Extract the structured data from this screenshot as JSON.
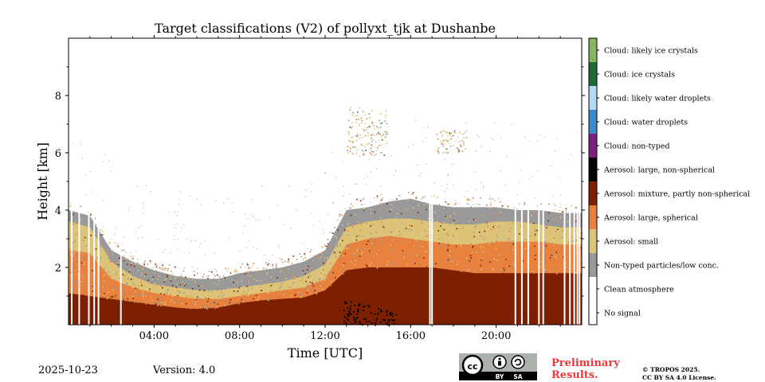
{
  "chart_data": {
    "type": "heatmap",
    "title": "Target classifications (V2) of pollyxt_tjk at Dushanbe",
    "xlabel": "Time [UTC]",
    "ylabel": "Height [km]",
    "xlim_hours": [
      0,
      24
    ],
    "ylim_km": [
      0,
      10
    ],
    "x_ticks": [
      {
        "hour": 4,
        "label": "04:00"
      },
      {
        "hour": 8,
        "label": "08:00"
      },
      {
        "hour": 12,
        "label": "12:00"
      },
      {
        "hour": 16,
        "label": "16:00"
      },
      {
        "hour": 20,
        "label": "20:00"
      }
    ],
    "y_ticks": [
      {
        "km": 2,
        "label": "2"
      },
      {
        "km": 4,
        "label": "4"
      },
      {
        "km": 6,
        "label": "6"
      },
      {
        "km": 8,
        "label": "8"
      }
    ],
    "classes": [
      {
        "id": 11,
        "label": "Cloud: likely ice crystals",
        "color": "#8ab560"
      },
      {
        "id": 10,
        "label": "Cloud: ice crystals",
        "color": "#1d6b35"
      },
      {
        "id": 9,
        "label": "Cloud: likely water droplets",
        "color": "#b4d8f2"
      },
      {
        "id": 8,
        "label": "Cloud: water droplets",
        "color": "#3d8ac9"
      },
      {
        "id": 7,
        "label": "Cloud: non-typed",
        "color": "#7b1f83"
      },
      {
        "id": 6,
        "label": "Aerosol: large, non-spherical",
        "color": "#000000"
      },
      {
        "id": 5,
        "label": "Aerosol: mixture, partly non-spherical",
        "color": "#7d2002"
      },
      {
        "id": 4,
        "label": "Aerosol: large, spherical",
        "color": "#e8803e"
      },
      {
        "id": 3,
        "label": "Aerosol: small",
        "color": "#dcc378"
      },
      {
        "id": 2,
        "label": "Non-typed particles/low conc.",
        "color": "#999999"
      },
      {
        "id": 1,
        "label": "Clean atmosphere",
        "color": "#ffffff"
      },
      {
        "id": 0,
        "label": "No signal",
        "color": "#ffffff"
      }
    ],
    "layer_top_km": [
      {
        "hour": 0,
        "mixture": 1.1,
        "spherical": 2.6,
        "small": 3.6,
        "nontyped": 4.0
      },
      {
        "hour": 1,
        "mixture": 1.0,
        "spherical": 2.5,
        "small": 3.4,
        "nontyped": 3.8
      },
      {
        "hour": 2,
        "mixture": 0.9,
        "spherical": 1.6,
        "small": 2.2,
        "nontyped": 2.6
      },
      {
        "hour": 3,
        "mixture": 0.8,
        "spherical": 1.3,
        "small": 1.7,
        "nontyped": 2.2
      },
      {
        "hour": 4,
        "mixture": 0.7,
        "spherical": 1.1,
        "small": 1.4,
        "nontyped": 1.9
      },
      {
        "hour": 5,
        "mixture": 0.6,
        "spherical": 1.0,
        "small": 1.3,
        "nontyped": 1.7
      },
      {
        "hour": 6,
        "mixture": 0.55,
        "spherical": 0.9,
        "small": 1.2,
        "nontyped": 1.6
      },
      {
        "hour": 7,
        "mixture": 0.6,
        "spherical": 0.9,
        "small": 1.2,
        "nontyped": 1.6
      },
      {
        "hour": 8,
        "mixture": 0.75,
        "spherical": 1.0,
        "small": 1.3,
        "nontyped": 1.8
      },
      {
        "hour": 9,
        "mixture": 0.85,
        "spherical": 1.1,
        "small": 1.4,
        "nontyped": 1.9
      },
      {
        "hour": 10,
        "mixture": 0.9,
        "spherical": 1.2,
        "small": 1.5,
        "nontyped": 2.0
      },
      {
        "hour": 11,
        "mixture": 0.95,
        "spherical": 1.3,
        "small": 1.7,
        "nontyped": 2.2
      },
      {
        "hour": 12,
        "mixture": 1.2,
        "spherical": 1.6,
        "small": 2.1,
        "nontyped": 2.6
      },
      {
        "hour": 13,
        "mixture": 1.9,
        "spherical": 2.8,
        "small": 3.4,
        "nontyped": 4.0
      },
      {
        "hour": 14,
        "mixture": 2.0,
        "spherical": 3.0,
        "small": 3.6,
        "nontyped": 4.1
      },
      {
        "hour": 15,
        "mixture": 2.0,
        "spherical": 3.1,
        "small": 3.7,
        "nontyped": 4.3
      },
      {
        "hour": 16,
        "mixture": 2.0,
        "spherical": 3.0,
        "small": 3.7,
        "nontyped": 4.4
      },
      {
        "hour": 17,
        "mixture": 2.0,
        "spherical": 2.9,
        "small": 3.6,
        "nontyped": 4.2
      },
      {
        "hour": 18,
        "mixture": 1.9,
        "spherical": 2.8,
        "small": 3.5,
        "nontyped": 4.1
      },
      {
        "hour": 19,
        "mixture": 1.8,
        "spherical": 2.8,
        "small": 3.5,
        "nontyped": 4.1
      },
      {
        "hour": 20,
        "mixture": 1.8,
        "spherical": 2.9,
        "small": 3.6,
        "nontyped": 4.1
      },
      {
        "hour": 21,
        "mixture": 1.8,
        "spherical": 2.9,
        "small": 3.6,
        "nontyped": 4.0
      },
      {
        "hour": 22,
        "mixture": 1.8,
        "spherical": 2.9,
        "small": 3.5,
        "nontyped": 4.0
      },
      {
        "hour": 23,
        "mixture": 1.8,
        "spherical": 2.8,
        "small": 3.4,
        "nontyped": 3.9
      },
      {
        "hour": 24,
        "mixture": 1.8,
        "spherical": 2.8,
        "small": 3.4,
        "nontyped": 3.9
      }
    ],
    "no_signal_gaps_hours": [
      0.15,
      0.5,
      0.95,
      1.2,
      1.4,
      2.45,
      16.9,
      17.0,
      20.9,
      21.2,
      21.5,
      22.0,
      22.2,
      23.2,
      23.45,
      23.65,
      23.8,
      23.9
    ],
    "cloud_patches": [
      {
        "start_hour": 13.0,
        "end_hour": 13.9,
        "base_km": 5.9,
        "top_km": 7.6,
        "class": 3
      },
      {
        "start_hour": 13.9,
        "end_hour": 14.9,
        "base_km": 5.9,
        "top_km": 7.5,
        "class": 3
      },
      {
        "start_hour": 17.2,
        "end_hour": 18.6,
        "base_km": 6.0,
        "top_km": 6.8,
        "class": 3
      }
    ],
    "black_aerosol_patch": {
      "start_hour": 12.85,
      "end_hour": 15.3,
      "base_km": 0.0,
      "top_km": 0.9
    }
  },
  "footer": {
    "date": "2025-10-23",
    "version": "Version: 4.0",
    "preliminary_line1": "Preliminary",
    "preliminary_line2": "Results.",
    "copyright_line1": "© TROPOS 2025.",
    "copyright_line2": "CC BY SA 4.0 License."
  },
  "license_badge": {
    "cc": "cc",
    "by": "BY",
    "sa": "SA"
  }
}
